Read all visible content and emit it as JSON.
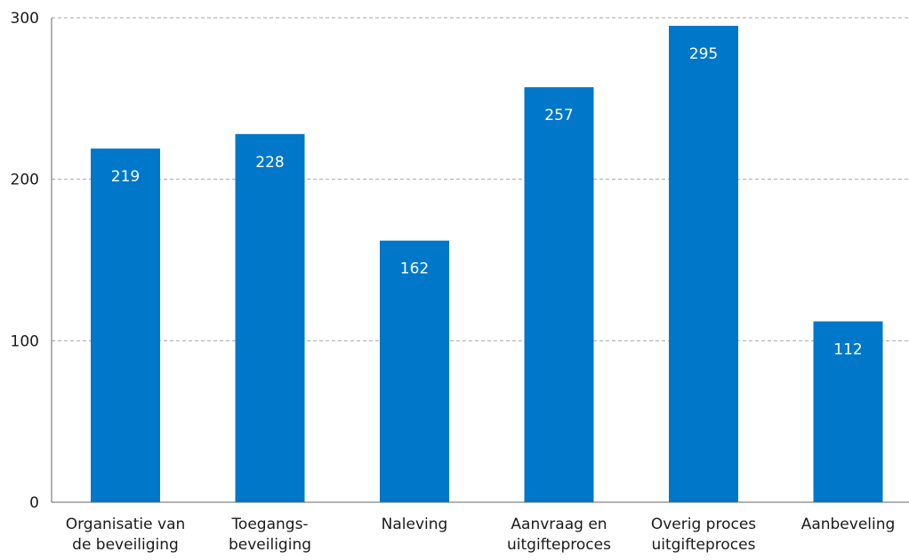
{
  "chart_data": {
    "type": "bar",
    "categories": [
      [
        "Organisatie van",
        "de beveiliging"
      ],
      [
        "Toegangs-",
        "beveiliging"
      ],
      [
        "Naleving"
      ],
      [
        "Aanvraag en",
        "uitgifteproces"
      ],
      [
        "Overig proces",
        "uitgifteproces"
      ],
      [
        "Aanbeveling"
      ]
    ],
    "values": [
      219,
      228,
      162,
      257,
      295,
      112
    ],
    "data_labels": [
      "219",
      "228",
      "162",
      "257",
      "295",
      "112"
    ],
    "y_ticks": [
      0,
      100,
      200,
      300
    ],
    "y_tick_labels": [
      "0",
      "100",
      "200",
      "300"
    ],
    "ylim": [
      0,
      300
    ],
    "title": "",
    "xlabel": "",
    "ylabel": "",
    "grid": true,
    "legend": "none",
    "colors": {
      "bar": "#0077c8",
      "grid": "#a6a6a6",
      "axis": "#666666",
      "text": "#1a1a1a",
      "data_label": "#ffffff"
    }
  }
}
